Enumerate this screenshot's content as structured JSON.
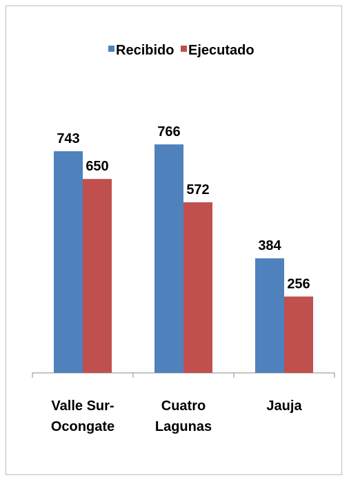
{
  "chart_data": {
    "type": "bar",
    "categories": [
      "Valle Sur-Ocongate",
      "Cuatro Lagunas",
      "Jauja"
    ],
    "series": [
      {
        "name": "Recibido",
        "color": "#4f81bd",
        "values": [
          743,
          766,
          384
        ]
      },
      {
        "name": "Ejecutado",
        "color": "#c0504d",
        "values": [
          650,
          572,
          256
        ]
      }
    ],
    "ylim": [
      0,
      800
    ],
    "legend": "top"
  }
}
